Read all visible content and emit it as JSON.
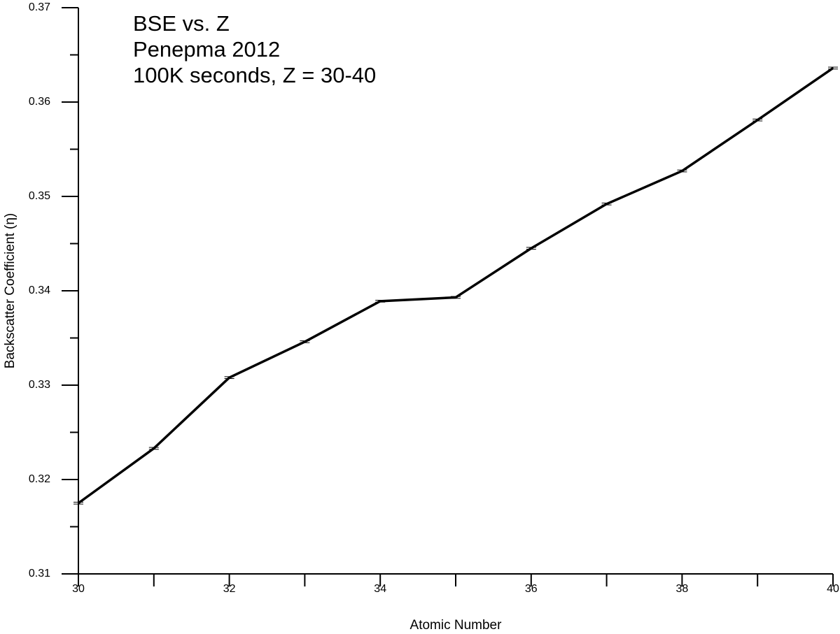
{
  "chart_data": {
    "type": "line",
    "title": [
      "BSE vs. Z",
      "Penepma 2012",
      "100K seconds, Z = 30-40"
    ],
    "x_label": "Atomic Number",
    "y_label": "Backscatter Coefficient (η)",
    "x": [
      30,
      31,
      32,
      33,
      34,
      35,
      36,
      37,
      38,
      39,
      40
    ],
    "series": [
      {
        "color": "#000000",
        "values": [
          0.3175,
          0.3233,
          0.3308,
          0.3346,
          0.3389,
          0.3393,
          0.3445,
          0.3492,
          0.3527,
          0.3581,
          0.3636
        ],
        "errors": [
          0.0001,
          0.0001,
          0.0001,
          0.0001,
          0.0001,
          0.0001,
          0.0001,
          0.0001,
          0.0001,
          0.0001,
          0.0001
        ]
      }
    ],
    "xlim": [
      30,
      40
    ],
    "xticks": [
      30,
      32,
      34,
      36,
      38,
      40
    ],
    "xminorticks": [
      31,
      33,
      35,
      37,
      39
    ],
    "ylim": [
      0.31,
      0.37
    ],
    "yticks": [
      0.31,
      0.32,
      0.33,
      0.34,
      0.35,
      0.36,
      0.37
    ],
    "yminorticks": [
      0.315,
      0.325,
      0.335,
      0.345,
      0.355,
      0.365
    ],
    "grid": false
  }
}
